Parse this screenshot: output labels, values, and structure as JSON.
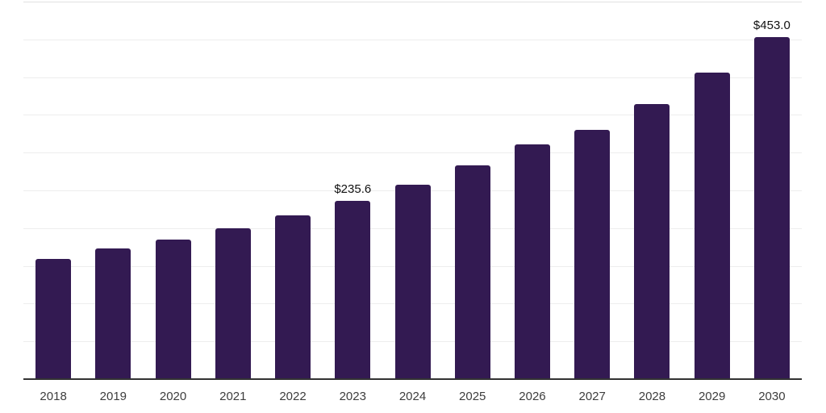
{
  "chart_data": {
    "type": "bar",
    "title": "",
    "xlabel": "",
    "ylabel": "",
    "categories": [
      "2018",
      "2019",
      "2020",
      "2021",
      "2022",
      "2023",
      "2024",
      "2025",
      "2026",
      "2027",
      "2028",
      "2029",
      "2030"
    ],
    "values": [
      159.0,
      173.0,
      185.0,
      200.0,
      217.0,
      235.6,
      258.0,
      283.0,
      311.0,
      330.0,
      364.0,
      406.0,
      453.0
    ],
    "data_labels": [
      "",
      "",
      "",
      "",
      "",
      "$235.6",
      "",
      "",
      "",
      "",
      "",
      "",
      "$453.0"
    ],
    "ylim": [
      0,
      500
    ],
    "grid_step": 50,
    "grid": "horizontal",
    "legend": false,
    "y_axis_labels_visible": false,
    "colors": {
      "bar": "#331a52",
      "axis_line": "#333333",
      "gridline": "#ededed",
      "top_gridline": "#e1e1e1",
      "tick_label": "#3d3d3d",
      "data_label": "#111111",
      "background": "#ffffff"
    }
  }
}
